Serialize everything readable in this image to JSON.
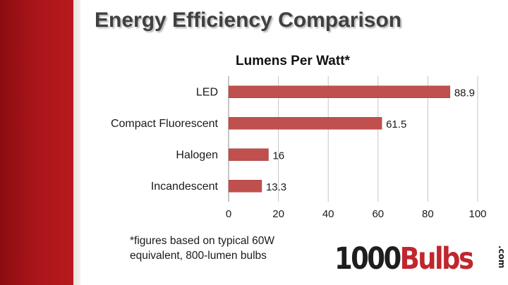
{
  "slide": {
    "title": "Energy Efficiency Comparison",
    "footnote_lines": [
      "*figures based on typical 60W",
      "equivalent, 800-lumen bulbs"
    ],
    "accent_color": "#b0181c"
  },
  "logo": {
    "part1": "1000",
    "part2": "Bulbs",
    "tld": ".com"
  },
  "chart_data": {
    "type": "bar",
    "orientation": "horizontal",
    "title": "Lumens Per Watt*",
    "categories": [
      "LED",
      "Compact Fluorescent",
      "Halogen",
      "Incandescent"
    ],
    "values": [
      88.9,
      61.5,
      16,
      13.3
    ],
    "data_labels": [
      "88.9",
      "61.5",
      "16",
      "13.3"
    ],
    "xlim": [
      0,
      100
    ],
    "x_ticks": [
      "0",
      "20",
      "40",
      "60",
      "80",
      "100"
    ],
    "grid": true,
    "bar_color": "#c0504d"
  }
}
